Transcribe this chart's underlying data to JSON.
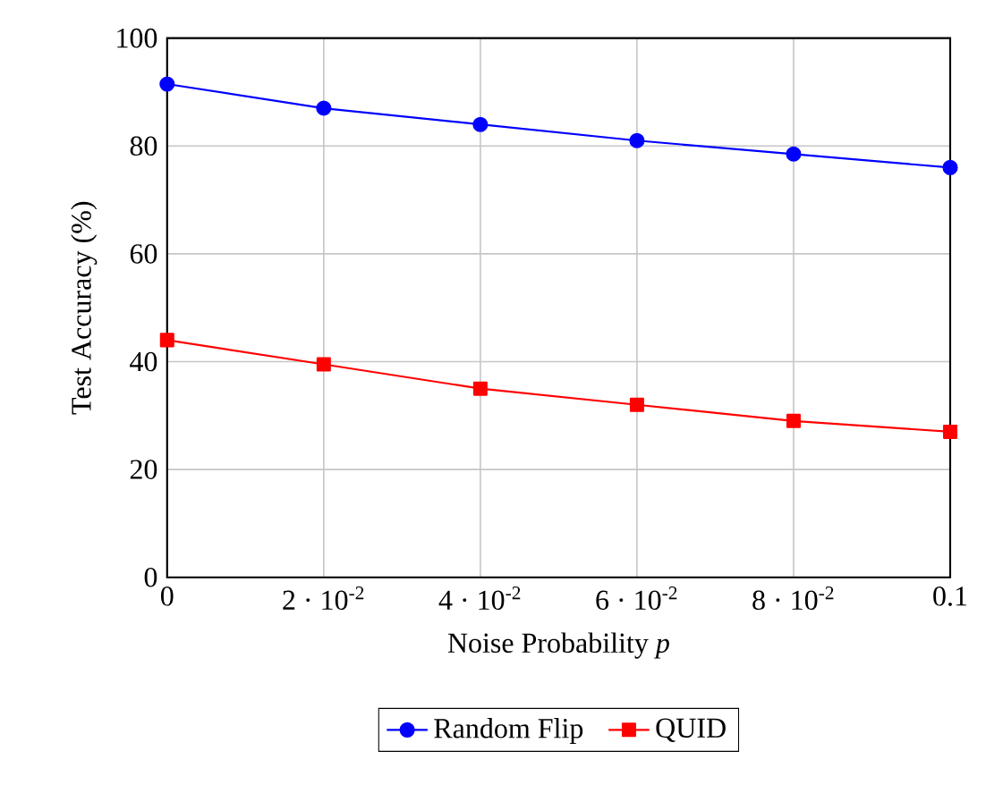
{
  "chart_data": {
    "type": "line",
    "xlabel": "Noise Probability *p*",
    "ylabel": "Test Accuracy (%)",
    "x": [
      0,
      0.02,
      0.04,
      0.06,
      0.08,
      0.1
    ],
    "series": [
      {
        "name": "Random Flip",
        "color": "#0000ff",
        "marker": "circle",
        "values": [
          91.5,
          87,
          84,
          81,
          78.5,
          76
        ]
      },
      {
        "name": "QUID",
        "color": "#ff0000",
        "marker": "square",
        "values": [
          44,
          39.5,
          35,
          32,
          29,
          27
        ]
      }
    ],
    "xlim": [
      0,
      0.1
    ],
    "ylim": [
      0,
      100
    ],
    "xticks": [
      0,
      {
        "value": 0.02,
        "label": "2 · 10$^{-2}$"
      },
      {
        "value": 0.04,
        "label": "4 · 10$^{-2}$"
      },
      {
        "value": 0.06,
        "label": "6 · 10$^{-2}$"
      },
      {
        "value": 0.08,
        "label": "8 · 10$^{-2}$"
      },
      0.1
    ],
    "yticks": [
      0,
      20,
      40,
      60,
      80,
      100
    ],
    "grid": true,
    "legend": "bottom",
    "line_style": "solid"
  }
}
